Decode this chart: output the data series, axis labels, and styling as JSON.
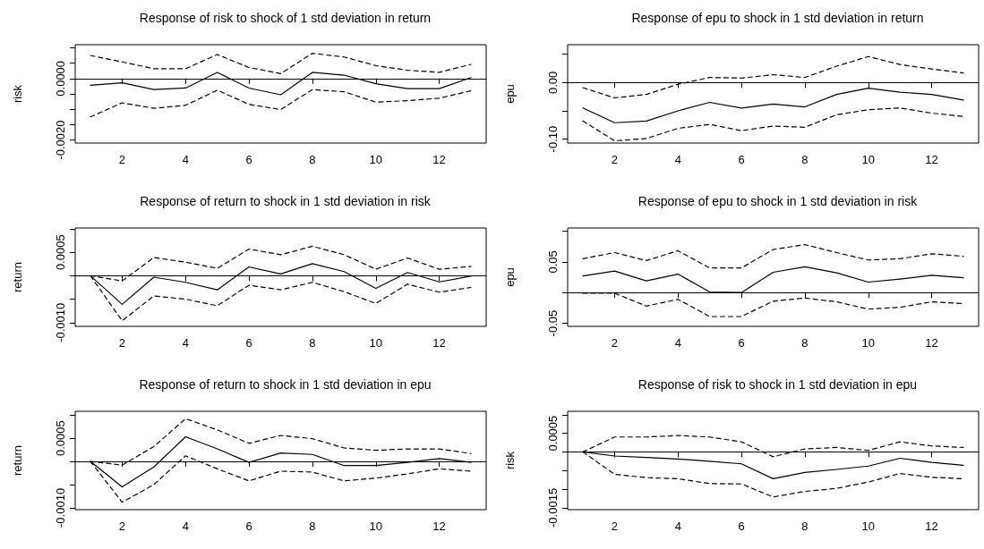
{
  "chart_data": [
    {
      "type": "line",
      "title": "Response of risk to shock of 1 std deviation in return",
      "ylabel": "risk",
      "x": [
        1,
        2,
        3,
        4,
        5,
        6,
        7,
        8,
        9,
        10,
        11,
        12,
        13
      ],
      "xlim": [
        0.52,
        13.48
      ],
      "xticks": [
        2,
        4,
        6,
        8,
        10,
        12
      ],
      "ylim": [
        -0.0021,
        0.0011
      ],
      "yticks": [
        {
          "value": 0.001,
          "label": null
        },
        {
          "value": 0.0005,
          "label": null
        },
        {
          "value": 0,
          "label": "0.0000"
        },
        {
          "value": -0.0005,
          "label": null
        },
        {
          "value": -0.001,
          "label": null
        },
        {
          "value": -0.0015,
          "label": null
        },
        {
          "value": -0.002,
          "label": "-0.0020"
        }
      ],
      "ref_lines": [
        {
          "axis": "y",
          "value": 0,
          "color": "#000000"
        }
      ],
      "series": [
        {
          "color": "#000000",
          "line_style": "solid",
          "values": [
            -0.00022,
            -0.00014,
            -0.00036,
            -0.00031,
            0.0002,
            -0.00031,
            -0.00053,
            0.0002,
            0.00011,
            -0.00017,
            -0.00033,
            -0.00033,
            3e-05
          ]
        },
        {
          "color": "#000000",
          "line_style": "dashed",
          "values": [
            0.00075,
            0.00054,
            0.00032,
            0.00032,
            0.00078,
            0.00036,
            0.00016,
            0.00082,
            0.0007,
            0.00042,
            0.00027,
            0.0002,
            0.00046
          ]
        },
        {
          "color": "#000000",
          "line_style": "dashed",
          "values": [
            -0.00125,
            -0.00079,
            -0.00097,
            -0.00087,
            -0.00038,
            -0.00084,
            -0.00101,
            -0.00036,
            -0.00043,
            -0.00077,
            -0.00072,
            -0.00064,
            -0.0004
          ]
        }
      ]
    },
    {
      "type": "line",
      "title": "Response of epu to shock in 1 std deviation in return",
      "ylabel": "epu",
      "x": [
        1,
        2,
        3,
        4,
        5,
        6,
        7,
        8,
        9,
        10,
        11,
        12,
        13
      ],
      "xlim": [
        0.52,
        13.48
      ],
      "xticks": [
        2,
        4,
        6,
        8,
        10,
        12
      ],
      "ylim": [
        -0.107,
        0.067
      ],
      "yticks": [
        {
          "value": 0.05,
          "label": null
        },
        {
          "value": 0,
          "label": "0.00"
        },
        {
          "value": -0.05,
          "label": null
        },
        {
          "value": -0.1,
          "label": "-0.10"
        }
      ],
      "ref_lines": [
        {
          "axis": "y",
          "value": 0,
          "color": "#000000"
        }
      ],
      "series": [
        {
          "color": "#000000",
          "line_style": "solid",
          "values": [
            -0.045,
            -0.071,
            -0.068,
            -0.05,
            -0.035,
            -0.045,
            -0.038,
            -0.043,
            -0.021,
            -0.01,
            -0.017,
            -0.021,
            -0.031
          ]
        },
        {
          "color": "#000000",
          "line_style": "dashed",
          "values": [
            -0.009,
            -0.027,
            -0.021,
            -0.003,
            0.009,
            0.008,
            0.014,
            0.009,
            0.029,
            0.046,
            0.032,
            0.024,
            0.017
          ]
        },
        {
          "color": "#000000",
          "line_style": "dashed",
          "values": [
            -0.068,
            -0.103,
            -0.099,
            -0.081,
            -0.074,
            -0.085,
            -0.077,
            -0.079,
            -0.057,
            -0.048,
            -0.045,
            -0.054,
            -0.06
          ]
        }
      ]
    },
    {
      "type": "line",
      "title": "Response of return to shock in 1 std deviation in risk",
      "ylabel": "return",
      "x": [
        1,
        2,
        3,
        4,
        5,
        6,
        7,
        8,
        9,
        10,
        11,
        12,
        13
      ],
      "xlim": [
        0.52,
        13.48
      ],
      "xticks": [
        2,
        4,
        6,
        8,
        10,
        12
      ],
      "ylim": [
        -0.00108,
        0.00102
      ],
      "yticks": [
        {
          "value": 0.001,
          "label": null
        },
        {
          "value": 0.0005,
          "label": "0.0005"
        },
        {
          "value": 0,
          "label": null
        },
        {
          "value": -0.0005,
          "label": null
        },
        {
          "value": -0.001,
          "label": "-0.0010"
        }
      ],
      "ref_lines": [
        {
          "axis": "y",
          "value": 0,
          "color": "#000000"
        }
      ],
      "series": [
        {
          "color": "#000000",
          "line_style": "solid",
          "values": [
            0,
            -0.00061,
            -3e-05,
            -0.00014,
            -0.0003,
            0.00019,
            4e-05,
            0.00026,
            9e-05,
            -0.00027,
            7e-05,
            -0.00013,
            -1e-05
          ]
        },
        {
          "color": "#000000",
          "line_style": "dashed",
          "values": [
            0,
            -0.00011,
            0.00039,
            0.00029,
            0.00016,
            0.00057,
            0.00045,
            0.00063,
            0.00045,
            0.00014,
            0.00038,
            0.00014,
            0.0002
          ]
        },
        {
          "color": "#000000",
          "line_style": "dashed",
          "values": [
            0,
            -0.00096,
            -0.00043,
            -0.0005,
            -0.00064,
            -0.0002,
            -0.0003,
            -0.00014,
            -0.00034,
            -0.00059,
            -0.00018,
            -0.00035,
            -0.00025
          ]
        }
      ]
    },
    {
      "type": "line",
      "title": "Response of epu to shock in 1 std deviation in risk",
      "ylabel": "epu",
      "x": [
        1,
        2,
        3,
        4,
        5,
        6,
        7,
        8,
        9,
        10,
        11,
        12,
        13
      ],
      "xlim": [
        0.52,
        13.48
      ],
      "xticks": [
        2,
        4,
        6,
        8,
        10,
        12
      ],
      "ylim": [
        -0.055,
        0.105
      ],
      "yticks": [
        {
          "value": 0.1,
          "label": null
        },
        {
          "value": 0.05,
          "label": "0.05"
        },
        {
          "value": 0,
          "label": null
        },
        {
          "value": -0.05,
          "label": "-0.05"
        }
      ],
      "ref_lines": [
        {
          "axis": "y",
          "value": 0,
          "color": "#000000"
        }
      ],
      "series": [
        {
          "color": "#000000",
          "line_style": "solid",
          "values": [
            0.027,
            0.035,
            0.019,
            0.03,
            0.001,
            0,
            0.033,
            0.042,
            0.032,
            0.017,
            0.022,
            0.028,
            0.024
          ]
        },
        {
          "color": "#000000",
          "line_style": "dashed",
          "values": [
            0.055,
            0.065,
            0.052,
            0.068,
            0.04,
            0.04,
            0.07,
            0.078,
            0.065,
            0.053,
            0.055,
            0.063,
            0.059
          ]
        },
        {
          "color": "#000000",
          "line_style": "dashed",
          "values": [
            -0.001,
            -0.001,
            -0.022,
            -0.011,
            -0.039,
            -0.039,
            -0.014,
            -0.009,
            -0.015,
            -0.027,
            -0.024,
            -0.015,
            -0.018
          ]
        }
      ]
    },
    {
      "type": "line",
      "title": "Response of return to shock in 1 std deviation in epu",
      "ylabel": "return",
      "x": [
        1,
        2,
        3,
        4,
        5,
        6,
        7,
        8,
        9,
        10,
        11,
        12,
        13
      ],
      "xlim": [
        0.52,
        13.48
      ],
      "xticks": [
        2,
        4,
        6,
        8,
        10,
        12
      ],
      "ylim": [
        -0.00104,
        0.00108
      ],
      "yticks": [
        {
          "value": 0.001,
          "label": null
        },
        {
          "value": 0.0005,
          "label": "0.0005"
        },
        {
          "value": 0,
          "label": null
        },
        {
          "value": -0.0005,
          "label": null
        },
        {
          "value": -0.001,
          "label": "-0.0010"
        }
      ],
      "ref_lines": [
        {
          "axis": "y",
          "value": 0,
          "color": "#000000"
        }
      ],
      "series": [
        {
          "color": "#000000",
          "line_style": "solid",
          "values": [
            0,
            -0.00055,
            -0.00012,
            0.00053,
            0.00027,
            -2e-05,
            0.00018,
            0.00015,
            -9e-05,
            -9e-05,
            -2e-05,
            6e-05,
            -2e-05
          ]
        },
        {
          "color": "#000000",
          "line_style": "dashed",
          "values": [
            0,
            -8e-05,
            0.00032,
            0.00092,
            0.00068,
            0.00039,
            0.00056,
            0.00049,
            0.00029,
            0.00024,
            0.00027,
            0.00027,
            0.00017
          ]
        },
        {
          "color": "#000000",
          "line_style": "dashed",
          "values": [
            0,
            -0.00088,
            -0.0005,
            0.00012,
            -0.00016,
            -0.00042,
            -0.00021,
            -0.00023,
            -0.00042,
            -0.00036,
            -0.00027,
            -0.00016,
            -0.00021
          ]
        }
      ]
    },
    {
      "type": "line",
      "title": "Response of risk to shock in 1 std deviation in epu",
      "ylabel": "risk",
      "x": [
        1,
        2,
        3,
        4,
        5,
        6,
        7,
        8,
        9,
        10,
        11,
        12,
        13
      ],
      "xlim": [
        0.52,
        13.48
      ],
      "xticks": [
        2,
        4,
        6,
        8,
        10,
        12
      ],
      "ylim": [
        -0.00155,
        0.00109
      ],
      "yticks": [
        {
          "value": 0.001,
          "label": null
        },
        {
          "value": 0.0005,
          "label": "0.0005"
        },
        {
          "value": 0,
          "label": null
        },
        {
          "value": -0.0005,
          "label": null
        },
        {
          "value": -0.001,
          "label": null
        },
        {
          "value": -0.0015,
          "label": "-0.0015"
        }
      ],
      "ref_lines": [
        {
          "axis": "y",
          "value": 0,
          "color": "#000000"
        }
      ],
      "series": [
        {
          "color": "#000000",
          "line_style": "solid",
          "values": [
            0,
            -0.00011,
            -0.00015,
            -0.00019,
            -0.00025,
            -0.00032,
            -0.00072,
            -0.00055,
            -0.00047,
            -0.00038,
            -0.00017,
            -0.00028,
            -0.00036
          ]
        },
        {
          "color": "#000000",
          "line_style": "dashed",
          "values": [
            0,
            0.0004,
            0.0004,
            0.00044,
            0.0004,
            0.00027,
            -0.00013,
            8e-05,
            0.00012,
            4e-05,
            0.00027,
            0.00016,
            0.00012
          ]
        },
        {
          "color": "#000000",
          "line_style": "dashed",
          "values": [
            0,
            -0.0006,
            -0.00069,
            -0.00072,
            -0.00085,
            -0.00086,
            -0.00121,
            -0.00106,
            -0.00098,
            -0.00081,
            -0.00058,
            -0.00068,
            -0.00072
          ]
        }
      ]
    }
  ]
}
